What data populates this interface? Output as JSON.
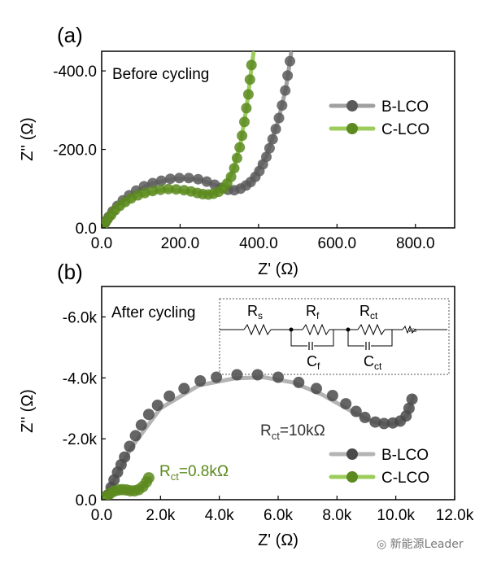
{
  "chart_data": [
    {
      "panel": "(a)",
      "type": "scatter",
      "annotation": "Before cycling",
      "xlabel": "Z' (Ω)",
      "ylabel": "Z'' (Ω)",
      "xlim": [
        0,
        900
      ],
      "ylim": [
        0,
        450
      ],
      "xticks": [
        0,
        200,
        400,
        600,
        800
      ],
      "xtick_labels": [
        "0.0",
        "200.0",
        "400.0",
        "600.0",
        "800.0"
      ],
      "yticks": [
        0,
        200,
        400
      ],
      "ytick_labels": [
        "0.0",
        "-200.0",
        "-400.0"
      ],
      "legend_position": "right",
      "series": [
        {
          "name": "B-LCO",
          "color": "#5a5a5a",
          "line_color": "#a0a0a0",
          "points": [
            [
              4,
              4
            ],
            [
              10,
              15
            ],
            [
              18,
              28
            ],
            [
              28,
              42
            ],
            [
              40,
              56
            ],
            [
              54,
              70
            ],
            [
              70,
              83
            ],
            [
              88,
              95
            ],
            [
              108,
              106
            ],
            [
              130,
              114
            ],
            [
              152,
              120
            ],
            [
              175,
              125
            ],
            [
              198,
              127
            ],
            [
              222,
              127
            ],
            [
              246,
              124
            ],
            [
              268,
              118
            ],
            [
              288,
              110
            ],
            [
              305,
              102
            ],
            [
              322,
              97
            ],
            [
              338,
              96
            ],
            [
              354,
              100
            ],
            [
              368,
              108
            ],
            [
              380,
              117
            ],
            [
              392,
              130
            ],
            [
              402,
              145
            ],
            [
              411,
              162
            ],
            [
              420,
              181
            ],
            [
              428,
              203
            ],
            [
              436,
              226
            ],
            [
              444,
              252
            ],
            [
              452,
              280
            ],
            [
              460,
              312
            ],
            [
              468,
              350
            ],
            [
              474,
              388
            ],
            [
              480,
              425
            ]
          ],
          "curve": [
            [
              0,
              0
            ],
            [
              20,
              30
            ],
            [
              60,
              74
            ],
            [
              120,
              111
            ],
            [
              190,
              126
            ],
            [
              250,
              123
            ],
            [
              300,
              105
            ],
            [
              340,
              97
            ],
            [
              380,
              115
            ],
            [
              420,
              182
            ],
            [
              450,
              272
            ],
            [
              470,
              356
            ],
            [
              483,
              445
            ]
          ]
        },
        {
          "name": "C-LCO",
          "color": "#5c8a1e",
          "line_color": "#9ccc5c",
          "points": [
            [
              3,
              3
            ],
            [
              8,
              12
            ],
            [
              15,
              22
            ],
            [
              24,
              33
            ],
            [
              34,
              45
            ],
            [
              46,
              56
            ],
            [
              60,
              66
            ],
            [
              75,
              75
            ],
            [
              92,
              83
            ],
            [
              110,
              89
            ],
            [
              130,
              94
            ],
            [
              150,
              97
            ],
            [
              170,
              99
            ],
            [
              190,
              98
            ],
            [
              210,
              96
            ],
            [
              228,
              93
            ],
            [
              244,
              89
            ],
            [
              258,
              86
            ],
            [
              272,
              85
            ],
            [
              285,
              87
            ],
            [
              298,
              92
            ],
            [
              310,
              100
            ],
            [
              320,
              113
            ],
            [
              330,
              130
            ],
            [
              338,
              152
            ],
            [
              345,
              178
            ],
            [
              352,
              205
            ],
            [
              358,
              235
            ],
            [
              364,
              270
            ],
            [
              369,
              305
            ],
            [
              374,
              340
            ],
            [
              378,
              378
            ],
            [
              382,
              415
            ]
          ],
          "curve": [
            [
              0,
              0
            ],
            [
              30,
              40
            ],
            [
              90,
              82
            ],
            [
              160,
              98
            ],
            [
              230,
              92
            ],
            [
              280,
              86
            ],
            [
              310,
              99
            ],
            [
              335,
              145
            ],
            [
              355,
              220
            ],
            [
              370,
              310
            ],
            [
              380,
              390
            ],
            [
              387,
              445
            ]
          ]
        }
      ]
    },
    {
      "panel": "(b)",
      "type": "scatter",
      "annotation": "After cycling",
      "xlabel": "Z' (Ω)",
      "ylabel": "Z'' (Ω)",
      "xlim": [
        0,
        12000
      ],
      "ylim": [
        0,
        7000
      ],
      "xticks": [
        0,
        2000,
        4000,
        6000,
        8000,
        10000,
        12000
      ],
      "xtick_labels": [
        "0.0",
        "2.0k",
        "4.0k",
        "6.0k",
        "8.0k",
        "10.0k",
        "12.0k"
      ],
      "yticks": [
        0,
        2000,
        4000,
        6000
      ],
      "ytick_labels": [
        "0.0",
        "-2.0k",
        "-4.0k",
        "-6.0k"
      ],
      "legend_position": "bottom-right",
      "series": [
        {
          "name": "B-LCO",
          "label": "Rct=10kΩ",
          "color": "#4a4a4a",
          "line_color": "#b4b4b4",
          "points": [
            [
              200,
              150
            ],
            [
              320,
              400
            ],
            [
              420,
              650
            ],
            [
              540,
              900
            ],
            [
              660,
              1150
            ],
            [
              780,
              1400
            ],
            [
              950,
              1750
            ],
            [
              1150,
              2100
            ],
            [
              1350,
              2450
            ],
            [
              1600,
              2800
            ],
            [
              1900,
              3100
            ],
            [
              2300,
              3400
            ],
            [
              2800,
              3650
            ],
            [
              3350,
              3900
            ],
            [
              3900,
              4020
            ],
            [
              4600,
              4100
            ],
            [
              5300,
              4100
            ],
            [
              6000,
              4020
            ],
            [
              6700,
              3850
            ],
            [
              7300,
              3650
            ],
            [
              7850,
              3420
            ],
            [
              8300,
              3150
            ],
            [
              8650,
              2900
            ],
            [
              8950,
              2700
            ],
            [
              9300,
              2550
            ],
            [
              9600,
              2500
            ],
            [
              9900,
              2520
            ],
            [
              10150,
              2580
            ],
            [
              10350,
              2750
            ],
            [
              10450,
              3000
            ],
            [
              10550,
              3300
            ]
          ],
          "curve": [
            [
              0,
              0
            ],
            [
              400,
              600
            ],
            [
              1000,
              1700
            ],
            [
              2000,
              3000
            ],
            [
              3300,
              3750
            ],
            [
              4500,
              3980
            ],
            [
              5500,
              4020
            ],
            [
              6500,
              3850
            ],
            [
              7500,
              3450
            ],
            [
              8500,
              2900
            ],
            [
              9200,
              2560
            ],
            [
              9700,
              2480
            ],
            [
              10100,
              2520
            ],
            [
              10400,
              2800
            ],
            [
              10600,
              3400
            ]
          ]
        },
        {
          "name": "C-LCO",
          "label": "Rct=0.8kΩ",
          "color": "#5c8a1e",
          "line_color": "#9ccc5c",
          "points": [
            [
              150,
              100
            ],
            [
              280,
              200
            ],
            [
              420,
              280
            ],
            [
              560,
              320
            ],
            [
              700,
              330
            ],
            [
              840,
              320
            ],
            [
              980,
              290
            ],
            [
              1120,
              290
            ],
            [
              1260,
              330
            ],
            [
              1400,
              430
            ],
            [
              1520,
              580
            ],
            [
              1600,
              720
            ]
          ],
          "curve": [
            [
              0,
              0
            ],
            [
              300,
              220
            ],
            [
              600,
              310
            ],
            [
              900,
              300
            ],
            [
              1200,
              300
            ],
            [
              1450,
              430
            ],
            [
              1650,
              700
            ]
          ]
        }
      ]
    }
  ],
  "labels": {
    "panel_a": "(a)",
    "panel_b": "(b)",
    "before": "Before cycling",
    "after": "After cycling",
    "rct_b": "R",
    "rct_b_sub": "ct",
    "rct_b_val": "=10kΩ",
    "rct_c": "R",
    "rct_c_sub": "ct",
    "rct_c_val": "=0.8kΩ",
    "circuit": {
      "rs": "R",
      "rs_sub": "s",
      "rf": "R",
      "rf_sub": "f",
      "rct": "R",
      "rct_sub": "ct",
      "cf": "C",
      "cf_sub": "f",
      "cct": "C",
      "cct_sub": "ct",
      "ws": "Ws"
    },
    "watermark": "新能源Leader"
  }
}
